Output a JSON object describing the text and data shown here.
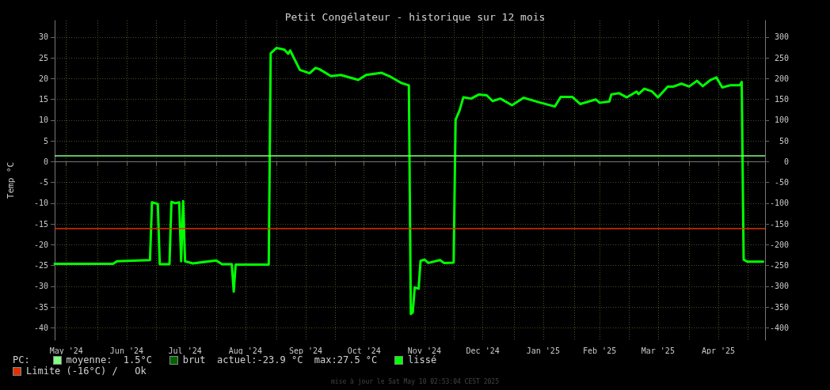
{
  "chart_data": {
    "type": "line",
    "title": "Petit Congélateur - historique sur 12 mois",
    "ylabel": "Temp °C",
    "x": [
      "2024-05-10",
      "2024-06-09",
      "2024-06-11",
      "2024-06-28",
      "2024-06-29",
      "2024-07-02",
      "2024-07-03",
      "2024-07-08",
      "2024-07-09",
      "2024-07-11",
      "2024-07-13",
      "2024-07-14",
      "2024-07-15",
      "2024-07-16",
      "2024-07-20",
      "2024-08-01",
      "2024-08-04",
      "2024-08-09",
      "2024-08-10",
      "2024-08-11",
      "2024-08-28",
      "2024-08-29",
      "2024-09-01",
      "2024-09-05",
      "2024-09-07",
      "2024-09-08",
      "2024-09-13",
      "2024-09-18",
      "2024-09-21",
      "2024-09-23",
      "2024-09-29",
      "2024-10-04",
      "2024-10-13",
      "2024-10-17",
      "2024-10-25",
      "2024-10-29",
      "2024-11-04",
      "2024-11-08",
      "2024-11-09",
      "2024-11-10",
      "2024-11-11",
      "2024-11-13",
      "2024-11-14",
      "2024-11-16",
      "2024-11-18",
      "2024-11-24",
      "2024-11-26",
      "2024-12-01",
      "2024-12-02",
      "2024-12-04",
      "2024-12-06",
      "2024-12-10",
      "2024-12-14",
      "2024-12-18",
      "2024-12-21",
      "2024-12-25",
      "2024-12-31",
      "2025-01-06",
      "2025-01-14",
      "2025-01-22",
      "2025-01-25",
      "2025-01-31",
      "2025-02-04",
      "2025-02-12",
      "2025-02-14",
      "2025-02-19",
      "2025-02-20",
      "2025-02-24",
      "2025-02-28",
      "2025-03-05",
      "2025-03-06",
      "2025-03-09",
      "2025-03-13",
      "2025-03-16",
      "2025-03-21",
      "2025-03-24",
      "2025-03-28",
      "2025-04-01",
      "2025-04-05",
      "2025-04-08",
      "2025-04-12",
      "2025-04-15",
      "2025-04-18",
      "2025-04-22",
      "2025-04-27",
      "2025-04-28",
      "2025-04-29",
      "2025-05-01",
      "2025-05-09"
    ],
    "series": [
      {
        "name": "lissé",
        "color": "#00ff00",
        "values": [
          -24.6,
          -24.6,
          -24.0,
          -23.7,
          -9.8,
          -10.2,
          -24.7,
          -24.7,
          -9.7,
          -10.0,
          -9.8,
          -24.0,
          -9.5,
          -24.0,
          -24.5,
          -23.8,
          -24.7,
          -24.7,
          -31.3,
          -24.8,
          -24.8,
          26.1,
          27.4,
          27.0,
          26.0,
          26.8,
          22.1,
          21.3,
          22.6,
          22.3,
          20.6,
          20.9,
          19.7,
          20.9,
          21.4,
          20.6,
          19.0,
          18.4,
          -36.7,
          -36.3,
          -30.3,
          -30.6,
          -23.9,
          -23.6,
          -24.4,
          -23.7,
          -24.4,
          -24.3,
          10.1,
          12.3,
          15.5,
          15.2,
          16.2,
          16.0,
          14.6,
          15.2,
          13.6,
          15.4,
          14.3,
          13.3,
          15.6,
          15.6,
          13.9,
          15.0,
          14.2,
          14.5,
          16.2,
          16.5,
          15.5,
          16.9,
          16.3,
          17.6,
          16.9,
          15.5,
          18.1,
          18.1,
          18.8,
          18.1,
          19.5,
          18.2,
          19.7,
          20.3,
          17.9,
          18.4,
          18.4,
          19.2,
          -23.6,
          -24.1,
          -24.1
        ]
      },
      {
        "name": "brut",
        "color": "#006400",
        "values": [
          null,
          null,
          null,
          null,
          null,
          null,
          null,
          null,
          null,
          null,
          null,
          null,
          null,
          null,
          null,
          null,
          null,
          null,
          null,
          null,
          null,
          null,
          null,
          null,
          null,
          null,
          null,
          null,
          null,
          null,
          null,
          null,
          null,
          null,
          null,
          null,
          null,
          null,
          null,
          null,
          null,
          null,
          null,
          null,
          null,
          null,
          null,
          null,
          null,
          null,
          null,
          null,
          null,
          null,
          null,
          null,
          null,
          null,
          null,
          null,
          null,
          null,
          null,
          null,
          null,
          null,
          null,
          null,
          null,
          null,
          null,
          null,
          null,
          null,
          null,
          null,
          null,
          null,
          null,
          null,
          null,
          null,
          null,
          null,
          null,
          null,
          null,
          null,
          null
        ]
      }
    ],
    "xlim": [
      "2024-05-10",
      "2025-05-10"
    ],
    "xticks": [
      {
        "value": "2024-05-16",
        "label": "May '24"
      },
      {
        "value": "2024-06-01",
        "label": null
      },
      {
        "value": "2024-06-16",
        "label": "Jun '24"
      },
      {
        "value": "2024-07-01",
        "label": null
      },
      {
        "value": "2024-07-16",
        "label": "Jul '24"
      },
      {
        "value": "2024-08-01",
        "label": null
      },
      {
        "value": "2024-08-16",
        "label": "Aug '24"
      },
      {
        "value": "2024-09-01",
        "label": null
      },
      {
        "value": "2024-09-16",
        "label": "Sep '24"
      },
      {
        "value": "2024-10-01",
        "label": null
      },
      {
        "value": "2024-10-16",
        "label": "Oct '24"
      },
      {
        "value": "2024-11-01",
        "label": null
      },
      {
        "value": "2024-11-16",
        "label": "Nov '24"
      },
      {
        "value": "2024-12-01",
        "label": null
      },
      {
        "value": "2024-12-16",
        "label": "Dec '24"
      },
      {
        "value": "2025-01-01",
        "label": null
      },
      {
        "value": "2025-01-16",
        "label": "Jan '25"
      },
      {
        "value": "2025-02-01",
        "label": null
      },
      {
        "value": "2025-02-14",
        "label": "Feb '25"
      },
      {
        "value": "2025-03-01",
        "label": null
      },
      {
        "value": "2025-03-16",
        "label": "Mar '25"
      },
      {
        "value": "2025-04-01",
        "label": null
      },
      {
        "value": "2025-04-16",
        "label": "Apr '25"
      },
      {
        "value": "2025-05-01",
        "label": null
      }
    ],
    "ylim": [
      -43,
      34
    ],
    "yticks": [
      -40,
      -35,
      -30,
      -25,
      -20,
      -15,
      -10,
      -5,
      0,
      5,
      10,
      15,
      20,
      25,
      30
    ],
    "y2lim": [
      -430,
      340
    ],
    "y2ticks": [
      -400,
      -350,
      -300,
      -250,
      -200,
      -150,
      -100,
      -50,
      0,
      50,
      100,
      150,
      200,
      250,
      300
    ],
    "ref_lines": [
      {
        "axis": "y",
        "value": 1.5,
        "label": "moyenne:  1.5°C",
        "color": "#80ff80"
      },
      {
        "axis": "y",
        "value": -16,
        "label": "Limite (-16°C)",
        "color": "#e03000"
      }
    ],
    "annotations": [
      "PC:",
      "actuel:-23.9 °C  max:27.5 °C",
      "/   Ok",
      "mise à jour le Sat May 10 02:53:04 CEST 2025"
    ],
    "grid": true,
    "legend": "bottom",
    "marker": "none",
    "line_style": "solid"
  }
}
